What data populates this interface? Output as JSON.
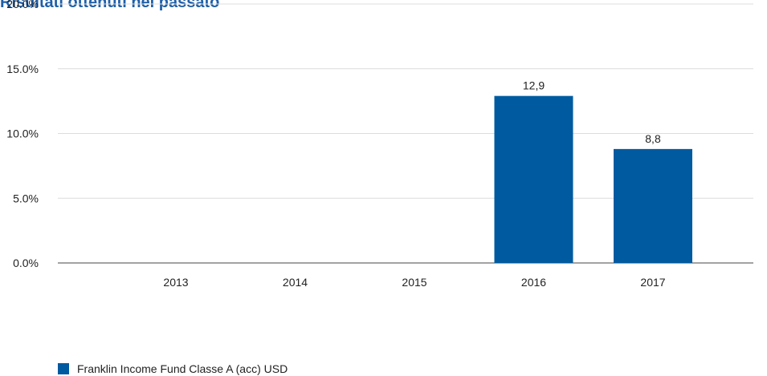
{
  "title": "Risultati ottenuti nel passato",
  "colors": {
    "bar": "#005aa0",
    "title": "#1f5fa8",
    "grid": "#dcdcdc",
    "axis": "#444444",
    "text": "#222222"
  },
  "chart_data": {
    "type": "bar",
    "title": "Risultati ottenuti nel passato",
    "categories": [
      "2013",
      "2014",
      "2015",
      "2016",
      "2017"
    ],
    "series": [
      {
        "name": "Franklin Income Fund Classe A (acc) USD",
        "values": [
          null,
          null,
          null,
          12.9,
          8.8
        ],
        "labels": [
          "",
          "",
          "",
          "12,9",
          "8,8"
        ]
      }
    ],
    "y_ticks": [
      "0.0%",
      "5.0%",
      "10.0%",
      "15.0%",
      "20.0%"
    ],
    "y_tick_values": [
      0,
      5,
      10,
      15,
      20
    ],
    "ylim": [
      0,
      20
    ],
    "grid": true,
    "legend_position": "bottom-left"
  }
}
